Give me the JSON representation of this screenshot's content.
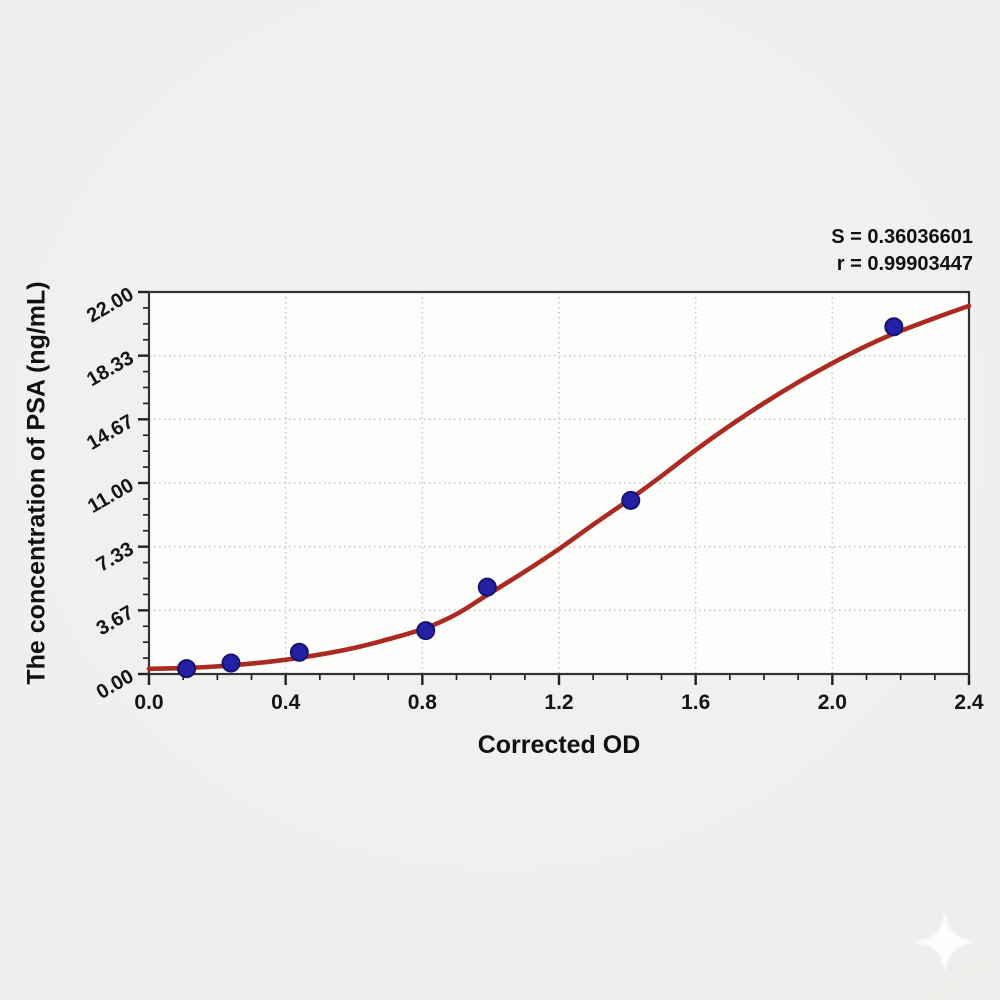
{
  "figure": {
    "background_color": "#efeeec",
    "watermark_icon": "sparkle-star"
  },
  "chart_data": {
    "type": "scatter",
    "title": "",
    "xlabel": "Corrected OD",
    "ylabel": "The concentration of PSA (ng/mL)",
    "xlim": [
      0,
      2.4
    ],
    "ylim": [
      0,
      22
    ],
    "grid": true,
    "legend": "none",
    "x_ticks": [
      "0.0",
      "0.4",
      "0.8",
      "1.2",
      "1.6",
      "2.0",
      "2.4"
    ],
    "x_tick_values": [
      0,
      0.4,
      0.8,
      1.2,
      1.6,
      2.0,
      2.4
    ],
    "x_minor_step": 0.1,
    "y_ticks": [
      "0.00",
      "3.67",
      "7.33",
      "11.00",
      "14.67",
      "18.33",
      "22.00"
    ],
    "y_tick_values": [
      0,
      3.6667,
      7.3333,
      11,
      14.6667,
      18.3333,
      22
    ],
    "y_minor_divisions": 4,
    "stats": {
      "S": "0.36036601",
      "r": "0.99903447",
      "s_text": "S = 0.36036601",
      "r_text": "r = 0.99903447"
    },
    "series": [
      {
        "name": "standard-points",
        "type": "scatter",
        "color": "#2320a6",
        "edge_color": "#16136e",
        "marker_radius": 8.5,
        "points": [
          [
            0.11,
            0.31
          ],
          [
            0.24,
            0.63
          ],
          [
            0.44,
            1.25
          ],
          [
            0.81,
            2.5
          ],
          [
            0.99,
            5.0
          ],
          [
            1.41,
            10.0
          ],
          [
            2.18,
            20.0
          ]
        ]
      },
      {
        "name": "4pl-fit-curve",
        "type": "line",
        "color": "#ab2a22",
        "stroke_width": 4.6,
        "points": [
          [
            0,
            0.3
          ],
          [
            0.1,
            0.34
          ],
          [
            0.2,
            0.44
          ],
          [
            0.3,
            0.6
          ],
          [
            0.4,
            0.82
          ],
          [
            0.5,
            1.12
          ],
          [
            0.6,
            1.5
          ],
          [
            0.7,
            2.0
          ],
          [
            0.81,
            2.65
          ],
          [
            0.9,
            3.45
          ],
          [
            0.99,
            4.55
          ],
          [
            1.1,
            5.9
          ],
          [
            1.2,
            7.2
          ],
          [
            1.3,
            8.6
          ],
          [
            1.41,
            10.1
          ],
          [
            1.5,
            11.4
          ],
          [
            1.6,
            12.9
          ],
          [
            1.7,
            14.3
          ],
          [
            1.8,
            15.6
          ],
          [
            1.9,
            16.8
          ],
          [
            2.0,
            17.9
          ],
          [
            2.1,
            18.9
          ],
          [
            2.18,
            19.6
          ],
          [
            2.3,
            20.5
          ],
          [
            2.4,
            21.2
          ]
        ]
      }
    ],
    "colors": {
      "plot_bg": "#fdfdfc",
      "frame": "#333333",
      "tick": "#222222",
      "grid": "#c8c8c8",
      "curve": "#ab2a22",
      "point": "#2320a6",
      "point_edge": "#16136e",
      "text": "#141414"
    }
  }
}
